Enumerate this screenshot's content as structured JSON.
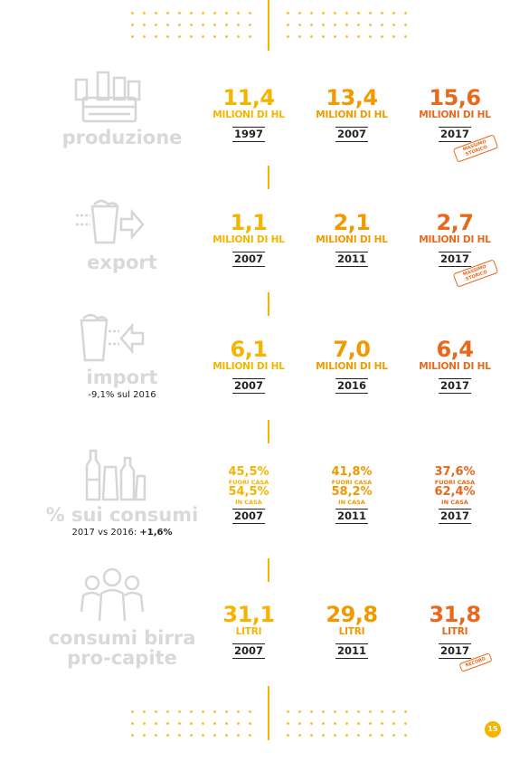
{
  "rows": [
    {
      "label": "produzione",
      "icon": "beer-crate-icon",
      "cols": [
        {
          "value": "11,4",
          "unit": "MILIONI DI HL",
          "year": "1997"
        },
        {
          "value": "13,4",
          "unit": "MILIONI DI HL",
          "year": "2007"
        },
        {
          "value": "15,6",
          "unit": "MILIONI DI HL",
          "year": "2017",
          "stamp": "MASSIMO STORICO"
        }
      ]
    },
    {
      "label": "export",
      "icon": "beer-glass-export-icon",
      "cols": [
        {
          "value": "1,1",
          "unit": "MILIONI DI HL",
          "year": "2007"
        },
        {
          "value": "2,1",
          "unit": "MILIONI DI HL",
          "year": "2011"
        },
        {
          "value": "2,7",
          "unit": "MILIONI DI HL",
          "year": "2017",
          "stamp": "MASSIMO STORICO"
        }
      ]
    },
    {
      "label": "import",
      "sub": "-9,1% sul 2016",
      "icon": "beer-glass-import-icon",
      "cols": [
        {
          "value": "6,1",
          "unit": "MILIONI DI HL",
          "year": "2007"
        },
        {
          "value": "7,0",
          "unit": "MILIONI DI HL",
          "year": "2016"
        },
        {
          "value": "6,4",
          "unit": "MILIONI DI HL",
          "year": "2017"
        }
      ]
    },
    {
      "label": "% sui consumi",
      "sub_prefix": "2017 vs 2016:",
      "sub_bold": "+1,6%",
      "icon": "bottles-glasses-icon",
      "cols": [
        {
          "p1": "45,5%",
          "l1": "FUORI CASA",
          "p2": "54,5%",
          "l2": "IN CASA",
          "year": "2007"
        },
        {
          "p1": "41,8%",
          "l1": "FUORI CASA",
          "p2": "58,2%",
          "l2": "IN CASA",
          "year": "2011"
        },
        {
          "p1": "37,6%",
          "l1": "FUORI CASA",
          "p2": "62,4%",
          "l2": "IN CASA",
          "year": "2017"
        }
      ]
    },
    {
      "label_line1": "consumi birra",
      "label_line2": "pro-capite",
      "icon": "person-group-icon",
      "cols": [
        {
          "value": "31,1",
          "unit": "LITRI",
          "year": "2007"
        },
        {
          "value": "29,8",
          "unit": "LITRI",
          "year": "2011"
        },
        {
          "value": "31,8",
          "unit": "LITRI",
          "year": "2017",
          "stamp": "RECORD"
        }
      ]
    }
  ],
  "page_number": "15",
  "colors": {
    "col1": "#f5b400",
    "col2": "#f09a00",
    "col3": "#e8681c",
    "label": "#d9d9d9",
    "dots": "#f2c230"
  }
}
